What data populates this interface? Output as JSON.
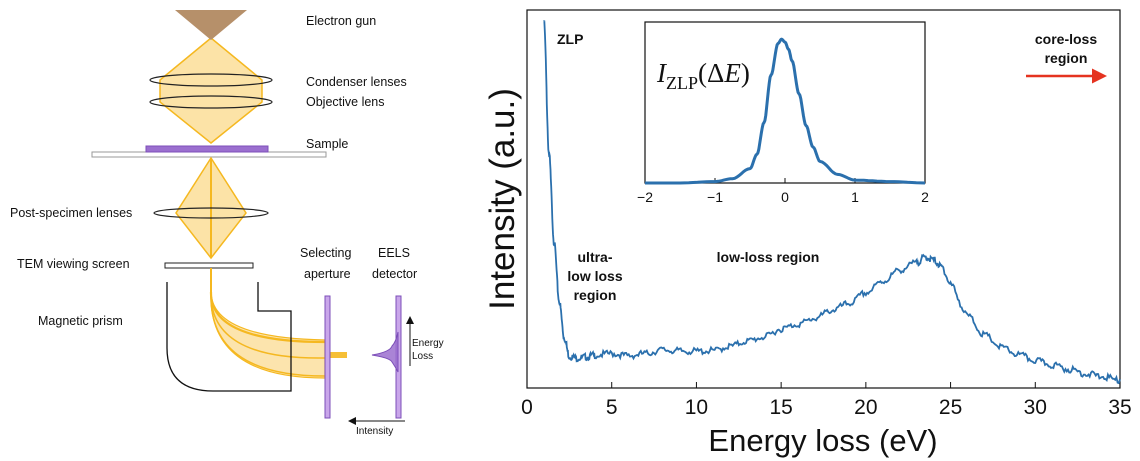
{
  "schematic": {
    "labels": {
      "electron_gun": "Electron gun",
      "condenser": "Condenser lenses",
      "objective": "Objective lens",
      "sample": "Sample",
      "post_specimen": "Post-specimen lenses",
      "viewing_screen": "TEM viewing screen",
      "prism": "Magnetic prism",
      "aperture_line1": "Selecting",
      "aperture_line2": "aperture",
      "detector_line1": "EELS",
      "detector_line2": "detector",
      "energy_line1": "Energy",
      "energy_line2": "Loss",
      "intensity": "Intensity"
    },
    "colors": {
      "beam": "#f5b820",
      "beam_fill": "#fbd98a",
      "gun": "#b6906a",
      "sample": "#9b6fcf",
      "prism_line": "#111111"
    }
  },
  "chart_data": [
    {
      "type": "line",
      "xlabel": "Energy loss (eV)",
      "ylabel": "Intensity (a.u.)",
      "xlim": [
        0,
        35
      ],
      "xticks": [
        0,
        5,
        10,
        15,
        20,
        25,
        30,
        35
      ],
      "line_color": "#2b70ad",
      "annotations": {
        "zlp": "ZLP",
        "ultra1": "ultra-",
        "ultra2": "low loss",
        "ultra3": "region",
        "lowloss": "low-loss region",
        "core1": "core-loss",
        "core2": "region"
      },
      "arrow_color": "#e53320",
      "x": [
        1.0,
        1.3,
        1.6,
        1.9,
        2.2,
        2.5,
        3,
        3.5,
        4,
        5,
        6,
        7,
        8,
        9,
        10,
        11,
        12,
        13,
        14,
        15,
        16,
        17,
        18,
        19,
        20,
        21,
        22,
        23,
        23.5,
        24,
        24.5,
        25,
        26,
        27,
        28,
        29,
        30,
        31,
        32,
        33,
        34,
        35
      ],
      "y": [
        100,
        64,
        40,
        24,
        14,
        9,
        8.6,
        8.9,
        9.4,
        9.8,
        9.2,
        9.8,
        10.8,
        10.5,
        10.4,
        10.6,
        11.8,
        13.2,
        14.3,
        16.5,
        17.8,
        19.4,
        21.6,
        23.4,
        26.3,
        29.4,
        32.5,
        34.5,
        36,
        35.2,
        33.2,
        28.5,
        20.1,
        14.8,
        11.5,
        9.5,
        7.9,
        6.7,
        5.5,
        4.3,
        3.5,
        2.4
      ],
      "ylim": [
        0,
        100
      ]
    },
    {
      "type": "line",
      "title": "I_ZLP(ΔE)",
      "title_parts": [
        "I",
        "ZLP",
        "(Δ",
        "E",
        ")"
      ],
      "xlim": [
        -2,
        2
      ],
      "xticks": [
        -2,
        -1,
        0,
        1,
        2
      ],
      "xtick_labels": [
        "−2",
        "−1",
        "0",
        "1",
        "2"
      ],
      "line_color": "#2b70ad",
      "x": [
        -2.0,
        -1.5,
        -1.0,
        -0.75,
        -0.5,
        -0.4,
        -0.3,
        -0.2,
        -0.1,
        -0.05,
        0.0,
        0.05,
        0.1,
        0.2,
        0.3,
        0.4,
        0.5,
        0.75,
        1.0,
        1.5,
        2.0
      ],
      "y": [
        0.0,
        0.0,
        0.01,
        0.03,
        0.1,
        0.2,
        0.42,
        0.75,
        0.97,
        1.0,
        0.98,
        0.93,
        0.85,
        0.62,
        0.4,
        0.25,
        0.15,
        0.06,
        0.02,
        0.01,
        0.0
      ],
      "ylim": [
        0,
        1.05
      ]
    }
  ]
}
